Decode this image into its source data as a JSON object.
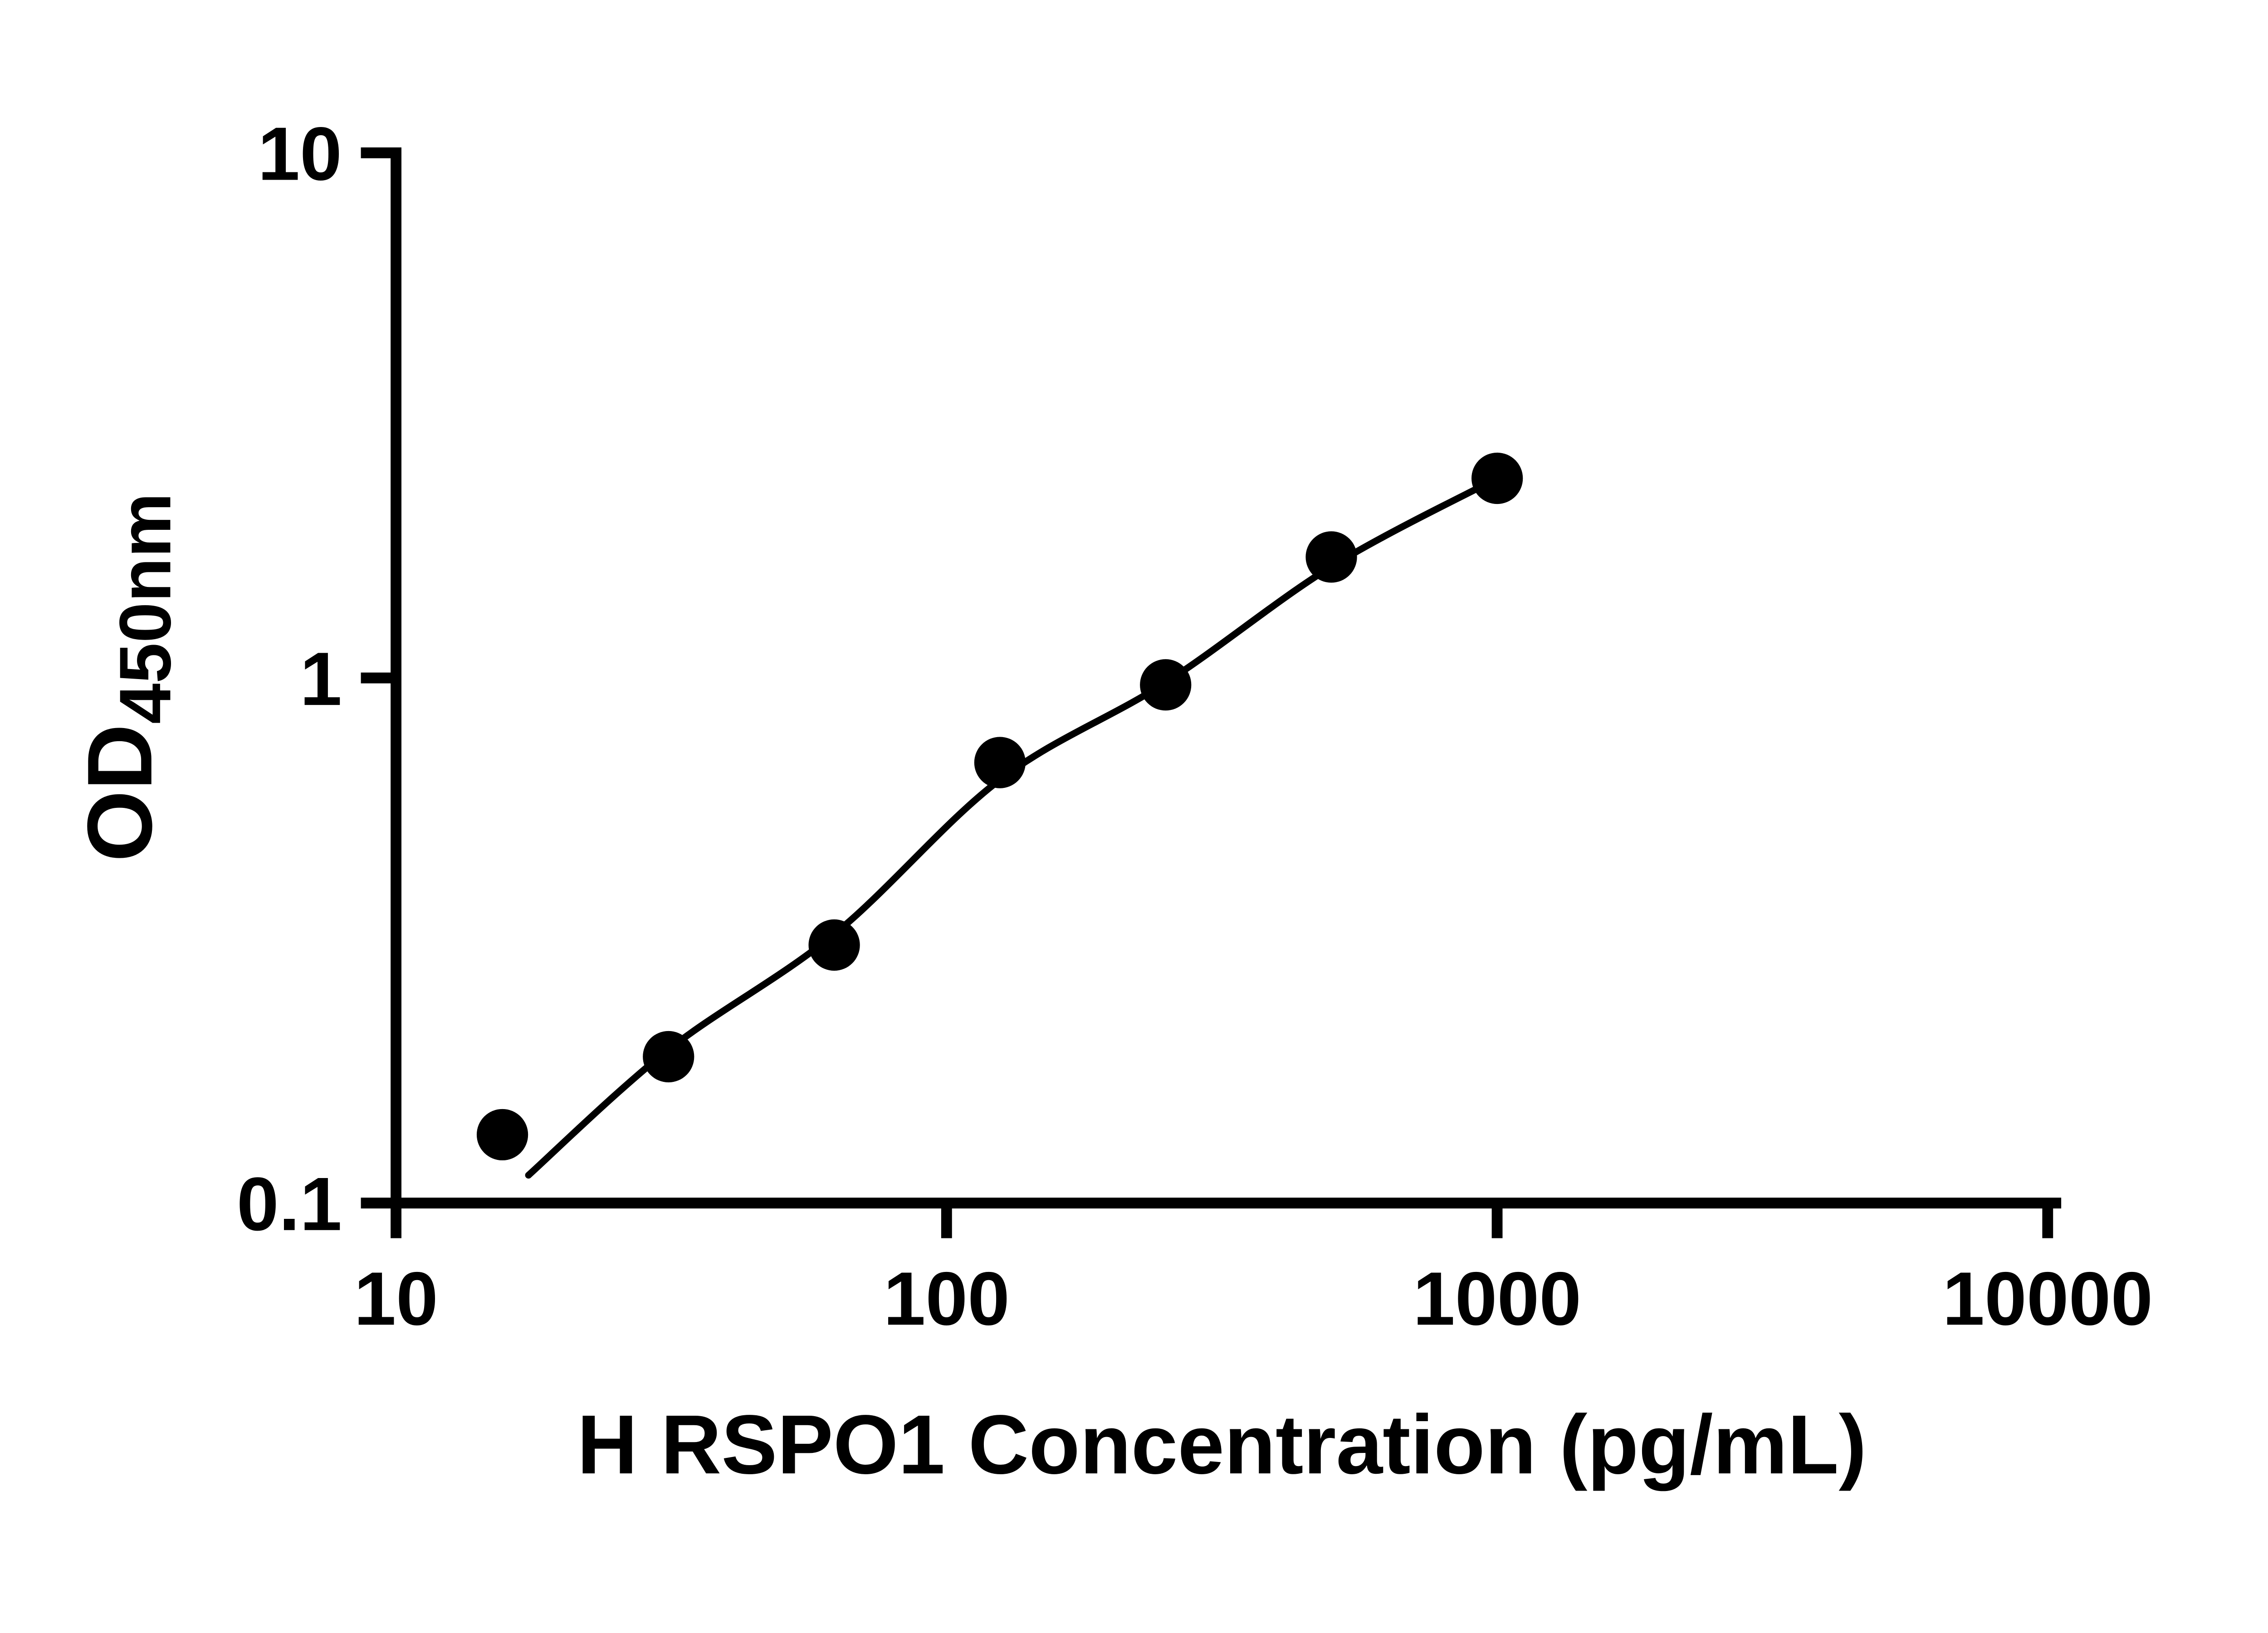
{
  "page": {
    "background": "#ffffff"
  },
  "chart_data": {
    "type": "scatter",
    "title": "",
    "xlabel": "H RSPO1 Concentration (pg/mL)",
    "ylabel": "OD",
    "ylabel_subscript": "450nm",
    "x_scale": "log10",
    "y_scale": "log10",
    "xlim": [
      10,
      10000
    ],
    "ylim": [
      0.1,
      10
    ],
    "x_ticks": [
      10,
      100,
      1000,
      10000
    ],
    "x_tick_labels": [
      "10",
      "100",
      "1000",
      "10000"
    ],
    "y_ticks": [
      0.1,
      1,
      10
    ],
    "y_tick_labels": [
      "0.1",
      "1",
      "10"
    ],
    "grid": false,
    "legend": "none",
    "axis_color": "#000000",
    "marker_color": "#000000",
    "curve_color": "#000000",
    "marker_shape": "filled-circle",
    "points": [
      {
        "x": 15.6,
        "y": 0.135
      },
      {
        "x": 31.25,
        "y": 0.19
      },
      {
        "x": 62.5,
        "y": 0.31
      },
      {
        "x": 125,
        "y": 0.69
      },
      {
        "x": 250,
        "y": 0.97
      },
      {
        "x": 500,
        "y": 1.7
      },
      {
        "x": 1000,
        "y": 2.4
      }
    ],
    "fit_curve": [
      {
        "x": 17.4,
        "y": 0.113
      },
      {
        "x": 31.25,
        "y": 0.196
      },
      {
        "x": 62.5,
        "y": 0.325
      },
      {
        "x": 125,
        "y": 0.64
      },
      {
        "x": 250,
        "y": 0.98
      },
      {
        "x": 500,
        "y": 1.63
      },
      {
        "x": 1000,
        "y": 2.4
      }
    ]
  }
}
